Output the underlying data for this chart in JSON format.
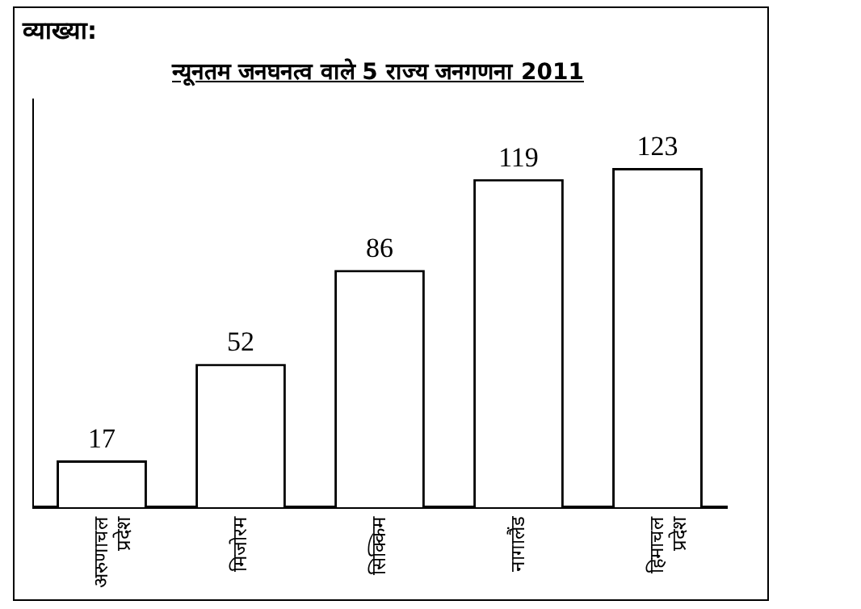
{
  "chart_data": {
    "type": "bar",
    "title": "न्यूनतम जनघनत्व वाले 5 राज्य जनगणना 2011",
    "annotations": [
      "व्याख्या:"
    ],
    "categories": [
      "अरुणाचल प्रदेश",
      "मिजोरम",
      "सिक्किम",
      "नागालैंड",
      "हिमाचल प्रदेश"
    ],
    "values": [
      17,
      52,
      86,
      119,
      123
    ],
    "color": "#ffffff",
    "data_labels": true,
    "grid": false,
    "legend": false
  }
}
